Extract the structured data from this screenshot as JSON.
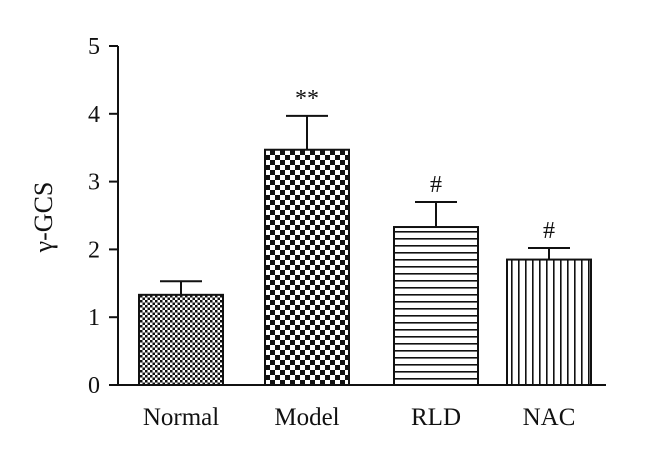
{
  "chart_data": {
    "type": "bar",
    "categories": [
      "Normal",
      "Model",
      "RLD",
      "NAC"
    ],
    "values": [
      1.33,
      3.47,
      2.33,
      1.85
    ],
    "errors": [
      0.2,
      0.5,
      0.37,
      0.17
    ],
    "annotations": [
      "",
      "**",
      "#",
      "#"
    ],
    "patterns": [
      "fine-check",
      "checkerboard",
      "horizontal-lines",
      "vertical-lines"
    ],
    "title": "",
    "xlabel": "",
    "ylabel": "γ-GCS",
    "ylim": [
      0,
      5
    ],
    "yticks": [
      "0",
      "1",
      "2",
      "3",
      "4",
      "5"
    ],
    "grid": false,
    "legend": "none",
    "colors": {
      "ink": "#111111",
      "background": "#ffffff"
    }
  }
}
